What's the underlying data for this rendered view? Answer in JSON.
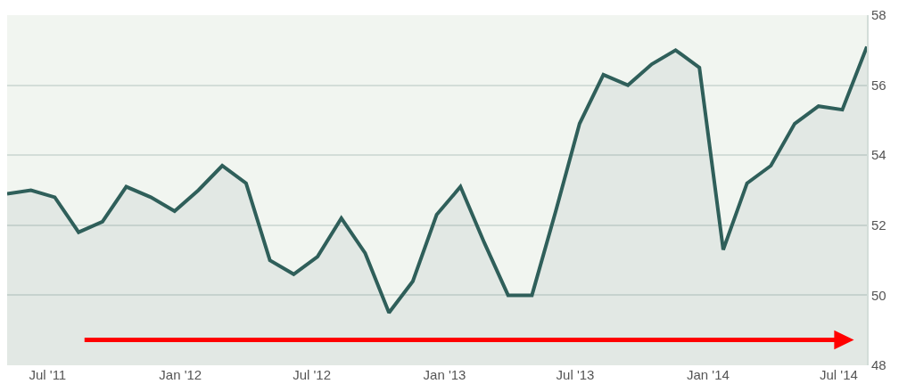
{
  "chart_data": {
    "type": "area",
    "x": [
      "2011-05-06",
      "2011-06-08",
      "2011-07-11",
      "2011-08-13",
      "2011-09-15",
      "2011-10-18",
      "2011-11-21",
      "2011-12-24",
      "2012-01-26",
      "2012-02-28",
      "2012-04-01",
      "2012-05-04",
      "2012-06-06",
      "2012-07-09",
      "2012-08-11",
      "2012-09-13",
      "2012-10-16",
      "2012-11-18",
      "2012-12-21",
      "2013-01-23",
      "2013-02-25",
      "2013-03-30",
      "2013-05-02",
      "2013-06-04",
      "2013-07-07",
      "2013-08-09",
      "2013-09-12",
      "2013-10-15",
      "2013-11-17",
      "2013-12-20",
      "2014-01-22",
      "2014-02-24",
      "2014-03-29",
      "2014-05-01",
      "2014-06-03",
      "2014-07-06",
      "2014-08-09"
    ],
    "series": [
      {
        "color": "#2f5f5a",
        "values": [
          52.9,
          53.0,
          52.8,
          51.8,
          52.1,
          53.1,
          52.8,
          52.4,
          53.0,
          53.7,
          53.2,
          51.0,
          50.6,
          51.1,
          52.2,
          51.2,
          49.5,
          50.4,
          52.3,
          53.1,
          51.5,
          50.0,
          50.0,
          52.4,
          54.9,
          56.3,
          56.0,
          56.6,
          57.0,
          56.5,
          51.3,
          53.2,
          53.7,
          54.9,
          55.4,
          55.3,
          57.1
        ]
      }
    ],
    "xlim": [
      "2011-05-06",
      "2014-08-09"
    ],
    "xticks": [
      {
        "value": "2011-07",
        "label": "Jul '11"
      },
      {
        "value": "2012-01",
        "label": "Jan '12"
      },
      {
        "value": "2012-07",
        "label": "Jul '12"
      },
      {
        "value": "2013-01",
        "label": "Jan '13"
      },
      {
        "value": "2013-07",
        "label": "Jul '13"
      },
      {
        "value": "2014-01",
        "label": "Jan '14"
      },
      {
        "value": "2014-07",
        "label": "Jul '14"
      }
    ],
    "ylim": [
      48,
      58
    ],
    "yticks": [
      48,
      50,
      52,
      54,
      56,
      58
    ],
    "grid": "y",
    "marker": "none",
    "line_style": "solid"
  }
}
